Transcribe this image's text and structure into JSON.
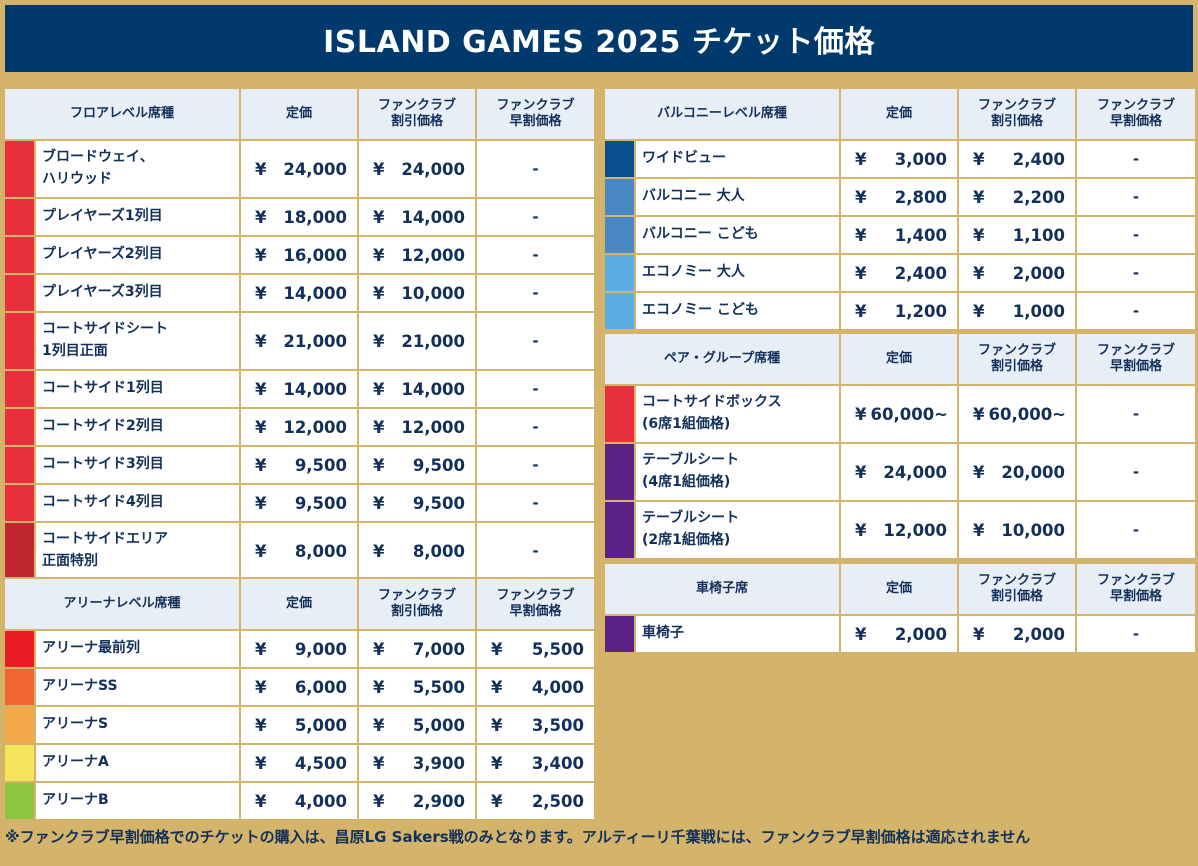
{
  "title": "ISLAND GAMES 2025 チケット価格",
  "headers": {
    "price": "定価",
    "fan": "ファンクラブ\n割引価格",
    "early": "ファンクラブ\n早割価格"
  },
  "yen": "¥",
  "dash": "-",
  "colors": {
    "border": "#d4b46a",
    "title_bg": "#003a6c",
    "header_bg": "#e8eef5"
  },
  "floor": {
    "label": "フロアレベル席種",
    "rows": [
      {
        "name": "ブロードウェイ、\nハリウッド",
        "price": "24,000",
        "fan": "24,000",
        "early": "-",
        "color": "#e8303d"
      },
      {
        "name": "プレイヤーズ1列目",
        "price": "18,000",
        "fan": "14,000",
        "early": "-",
        "color": "#e8303d"
      },
      {
        "name": "プレイヤーズ2列目",
        "price": "16,000",
        "fan": "12,000",
        "early": "-",
        "color": "#e8303d"
      },
      {
        "name": "プレイヤーズ3列目",
        "price": "14,000",
        "fan": "10,000",
        "early": "-",
        "color": "#e8303d"
      },
      {
        "name": "コートサイドシート\n1列目正面",
        "price": "21,000",
        "fan": "21,000",
        "early": "-",
        "color": "#e8303d"
      },
      {
        "name": "コートサイド1列目",
        "price": "14,000",
        "fan": "14,000",
        "early": "-",
        "color": "#e8303d"
      },
      {
        "name": "コートサイド2列目",
        "price": "12,000",
        "fan": "12,000",
        "early": "-",
        "color": "#e8303d"
      },
      {
        "name": "コートサイド3列目",
        "price": "9,500",
        "fan": "9,500",
        "early": "-",
        "color": "#e8303d"
      },
      {
        "name": "コートサイド4列目",
        "price": "9,500",
        "fan": "9,500",
        "early": "-",
        "color": "#e8303d"
      },
      {
        "name": "コートサイドエリア\n正面特別",
        "price": "8,000",
        "fan": "8,000",
        "early": "-",
        "color": "#c0272f"
      }
    ]
  },
  "arena": {
    "label": "アリーナレベル席種",
    "rows": [
      {
        "name": "アリーナ最前列",
        "price": "9,000",
        "fan": "7,000",
        "early": "5,500",
        "color": "#ec1c24"
      },
      {
        "name": "アリーナSS",
        "price": "6,000",
        "fan": "5,500",
        "early": "4,000",
        "color": "#f26430"
      },
      {
        "name": "アリーナS",
        "price": "5,000",
        "fan": "5,000",
        "early": "3,500",
        "color": "#f2a94a"
      },
      {
        "name": "アリーナA",
        "price": "4,500",
        "fan": "3,900",
        "early": "3,400",
        "color": "#f5e45c"
      },
      {
        "name": "アリーナB",
        "price": "4,000",
        "fan": "2,900",
        "early": "2,500",
        "color": "#8cc63f"
      }
    ]
  },
  "balcony": {
    "label": "バルコニーレベル席種",
    "rows": [
      {
        "name": "ワイドビュー",
        "price": "3,000",
        "fan": "2,400",
        "early": "-",
        "color": "#0b4f8f"
      },
      {
        "name": "バルコニー 大人",
        "price": "2,800",
        "fan": "2,200",
        "early": "-",
        "color": "#4a88c3"
      },
      {
        "name": "バルコニー こども",
        "price": "1,400",
        "fan": "1,100",
        "early": "-",
        "color": "#4a88c3"
      },
      {
        "name": "エコノミー 大人",
        "price": "2,400",
        "fan": "2,000",
        "early": "-",
        "color": "#5aaee0"
      },
      {
        "name": "エコノミー こども",
        "price": "1,200",
        "fan": "1,000",
        "early": "-",
        "color": "#5aaee0"
      }
    ]
  },
  "pair": {
    "label": "ペア・グループ席種",
    "rows": [
      {
        "name": "コートサイドボックス\n(6席1組価格)",
        "price": "60,000~",
        "fan": "60,000~",
        "early": "-",
        "color": "#e8303d"
      },
      {
        "name": "テーブルシート\n(4席1組価格)",
        "price": "24,000",
        "fan": "20,000",
        "early": "-",
        "color": "#5b2283"
      },
      {
        "name": "テーブルシート\n(2席1組価格)",
        "price": "12,000",
        "fan": "10,000",
        "early": "-",
        "color": "#5b2283"
      }
    ]
  },
  "wheelchair": {
    "label": "車椅子席",
    "rows": [
      {
        "name": "車椅子",
        "price": "2,000",
        "fan": "2,000",
        "early": "-",
        "color": "#5b2283"
      }
    ]
  },
  "note": "※ファンクラブ早割価格でのチケットの購入は、昌原LG Sakers戦のみとなります。アルティーリ千葉戦には、ファンクラブ早割価格は適応されません"
}
